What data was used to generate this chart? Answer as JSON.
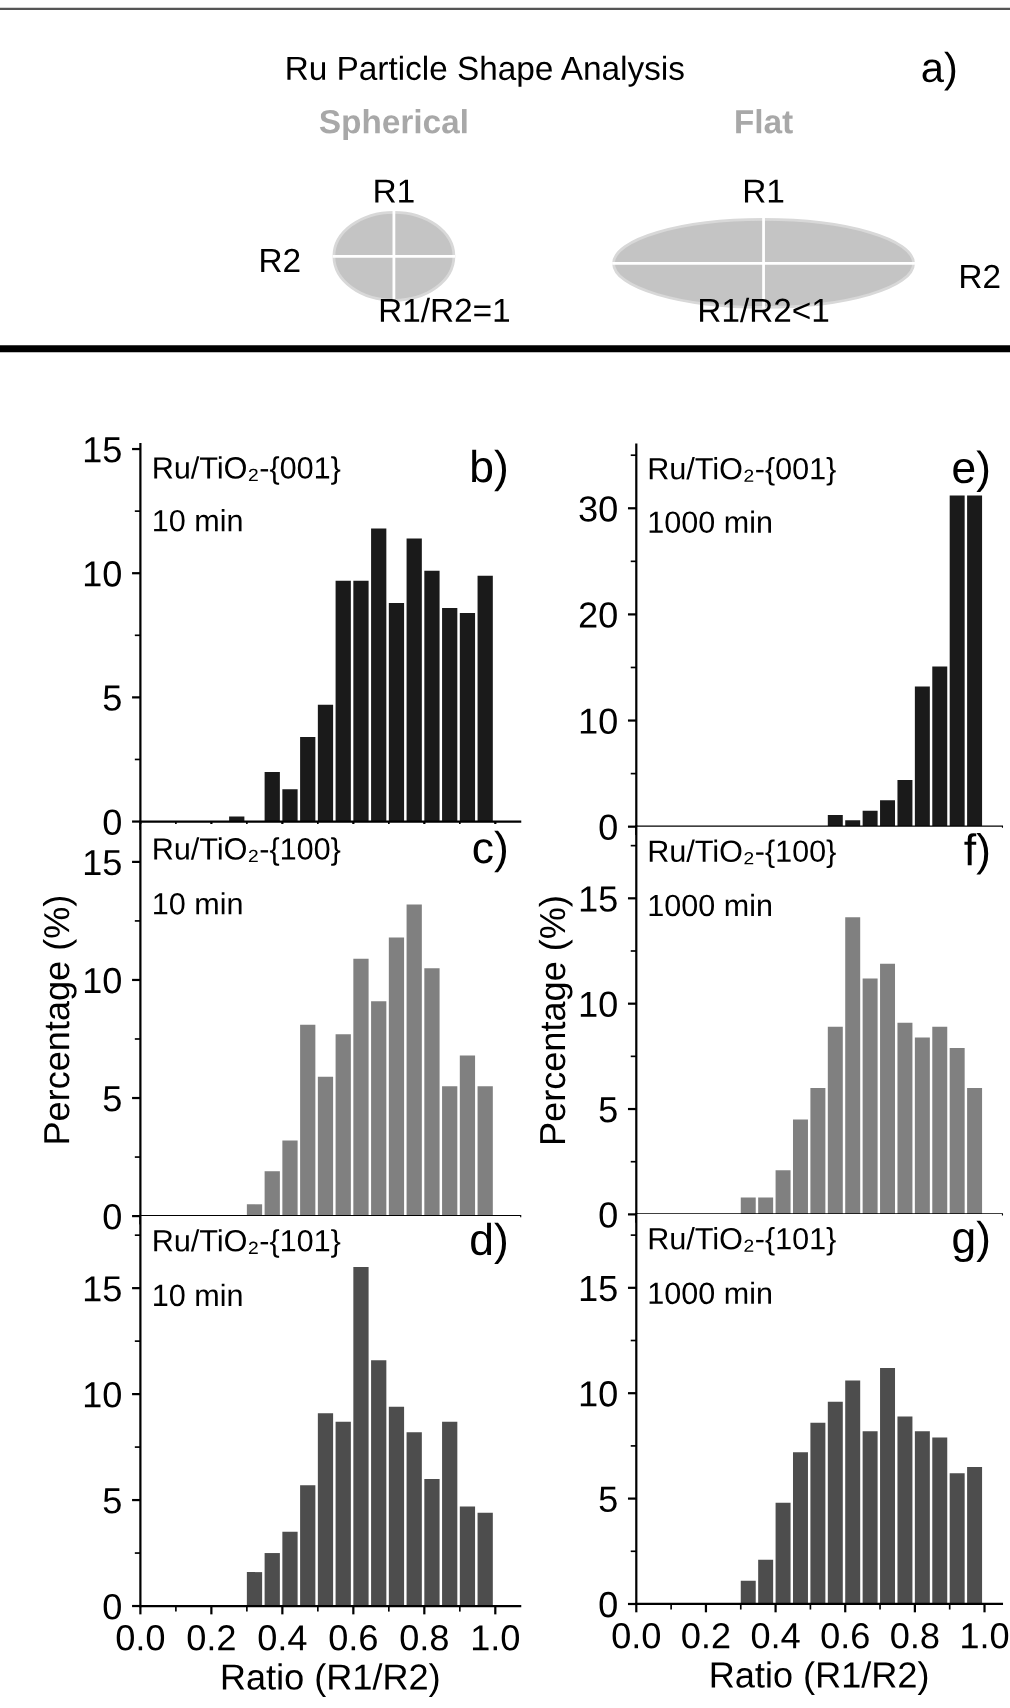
{
  "chart_data": [
    {
      "type": "other",
      "title": "Ru Particle Shape Analysis",
      "annotations": [
        "a)",
        "Spherical",
        "Flat",
        "R1",
        "R2",
        "R1/R2=1",
        "R1",
        "R2",
        "R1/R2<1"
      ]
    },
    {
      "type": "histogram",
      "bins": [
        0.25,
        0.3,
        0.35,
        0.4,
        0.45,
        0.5,
        0.55,
        0.6,
        0.65,
        0.7,
        0.75,
        0.8,
        0.85,
        0.9,
        0.95,
        1.0
      ],
      "values": [
        0.2,
        0,
        2.0,
        1.3,
        3.4,
        4.7,
        9.7,
        9.7,
        11.8,
        8.8,
        11.4,
        10.1,
        8.6,
        8.4,
        9.9
      ],
      "color": "#1a1a1a",
      "xlim": [
        0,
        1.07
      ],
      "ylim": [
        0,
        15.2
      ],
      "xticks": [
        {
          "value": 0,
          "label": null
        },
        {
          "value": 0.2,
          "label": null
        },
        {
          "value": 0.4,
          "label": null
        },
        {
          "value": 0.6,
          "label": null
        },
        {
          "value": 0.8,
          "label": null
        },
        {
          "value": 1,
          "label": null
        }
      ],
      "yticks": [
        0,
        5,
        10,
        15
      ],
      "tick_labels": "y",
      "annotations": [
        "Ru/TiO₂-{001}",
        "10 min",
        "b)"
      ]
    },
    {
      "type": "histogram",
      "bins": [
        0.3,
        0.35,
        0.4,
        0.45,
        0.5,
        0.55,
        0.6,
        0.65,
        0.7,
        0.75,
        0.8,
        0.85,
        0.9,
        0.95,
        1.0
      ],
      "values": [
        0.5,
        1.9,
        3.2,
        8.1,
        5.9,
        7.7,
        10.9,
        9.1,
        11.8,
        13.2,
        10.5,
        5.5,
        6.8,
        5.5
      ],
      "color": "#808080",
      "xlim": [
        0,
        1.07
      ],
      "ylim": [
        0,
        16.6
      ],
      "xticks": [
        {
          "value": 0,
          "label": null
        },
        {
          "value": 0.2,
          "label": null
        },
        {
          "value": 0.4,
          "label": null
        },
        {
          "value": 0.6,
          "label": null
        },
        {
          "value": 0.8,
          "label": null
        },
        {
          "value": 1,
          "label": null
        }
      ],
      "yticks": [
        0,
        5,
        10,
        15
      ],
      "tick_labels": "y",
      "ylabel": "Percentage (%)",
      "annotations": [
        "Ru/TiO₂-{100}",
        "10 min",
        "c)"
      ]
    },
    {
      "type": "histogram",
      "bins": [
        0.3,
        0.35,
        0.4,
        0.45,
        0.5,
        0.55,
        0.6,
        0.65,
        0.7,
        0.75,
        0.8,
        0.85,
        0.9,
        0.95,
        1.0
      ],
      "values": [
        1.6,
        2.5,
        3.5,
        5.7,
        9.1,
        8.7,
        16.0,
        11.6,
        9.4,
        8.2,
        6.0,
        8.7,
        4.7,
        4.4
      ],
      "color": "#4d4d4d",
      "xlim": [
        0,
        1.07
      ],
      "ylim": [
        0,
        18.4
      ],
      "xticks": [
        {
          "value": 0,
          "label": "0.0"
        },
        {
          "value": 0.2,
          "label": "0.2"
        },
        {
          "value": 0.4,
          "label": "0.4"
        },
        {
          "value": 0.6,
          "label": "0.6"
        },
        {
          "value": 0.8,
          "label": "0.8"
        },
        {
          "value": 1,
          "label": "1.0"
        }
      ],
      "yticks": [
        0,
        5,
        10,
        15
      ],
      "xlabel": "Ratio (R1/R2)",
      "annotations": [
        "Ru/TiO₂-{101}",
        "10 min",
        "d)"
      ]
    },
    {
      "type": "histogram",
      "bins": [
        0.55,
        0.6,
        0.65,
        0.7,
        0.75,
        0.8,
        0.85,
        0.9,
        0.95,
        1.0
      ],
      "values": [
        1.1,
        0.6,
        1.5,
        2.5,
        4.4,
        13.2,
        15.1,
        31.2,
        31.2
      ],
      "color": "#1a1a1a",
      "xlim": [
        0,
        1.05
      ],
      "ylim": [
        0,
        36
      ],
      "xticks": [
        {
          "value": 0,
          "label": null
        },
        {
          "value": 0.2,
          "label": null
        },
        {
          "value": 0.4,
          "label": null
        },
        {
          "value": 0.6,
          "label": null
        },
        {
          "value": 0.8,
          "label": null
        },
        {
          "value": 1,
          "label": null
        }
      ],
      "yticks": [
        0,
        10,
        20,
        30
      ],
      "tick_labels": "y",
      "annotations": [
        "Ru/TiO₂-{001}",
        "1000 min",
        "e)"
      ]
    },
    {
      "type": "histogram",
      "bins": [
        0.3,
        0.35,
        0.4,
        0.45,
        0.5,
        0.55,
        0.6,
        0.65,
        0.7,
        0.75,
        0.8,
        0.85,
        0.9,
        0.95,
        1.0
      ],
      "values": [
        0.8,
        0.8,
        2.1,
        4.5,
        6.0,
        8.9,
        14.1,
        11.2,
        11.9,
        9.1,
        8.4,
        8.9,
        7.9,
        6.0
      ],
      "color": "#808080",
      "xlim": [
        0,
        1.05
      ],
      "ylim": [
        0,
        18.4
      ],
      "xticks": [
        {
          "value": 0,
          "label": null
        },
        {
          "value": 0.2,
          "label": null
        },
        {
          "value": 0.4,
          "label": null
        },
        {
          "value": 0.6,
          "label": null
        },
        {
          "value": 0.8,
          "label": null
        },
        {
          "value": 1,
          "label": null
        }
      ],
      "yticks": [
        0,
        5,
        10,
        15
      ],
      "tick_labels": "y",
      "ylabel": "Percentage (%)",
      "annotations": [
        "Ru/TiO₂-{100}",
        "1000 min",
        "f)"
      ]
    },
    {
      "type": "histogram",
      "bins": [
        0.3,
        0.35,
        0.4,
        0.45,
        0.5,
        0.55,
        0.6,
        0.65,
        0.7,
        0.75,
        0.8,
        0.85,
        0.9,
        0.95,
        1.0
      ],
      "values": [
        1.1,
        2.1,
        4.8,
        7.2,
        8.6,
        9.6,
        10.6,
        8.2,
        11.2,
        8.9,
        8.2,
        7.9,
        6.2,
        6.5
      ],
      "color": "#4d4d4d",
      "xlim": [
        0,
        1.05
      ],
      "ylim": [
        0,
        18.5
      ],
      "xticks": [
        {
          "value": 0,
          "label": "0.0"
        },
        {
          "value": 0.2,
          "label": "0.2"
        },
        {
          "value": 0.4,
          "label": "0.4"
        },
        {
          "value": 0.6,
          "label": "0.6"
        },
        {
          "value": 0.8,
          "label": "0.8"
        },
        {
          "value": 1,
          "label": "1.0"
        }
      ],
      "yticks": [
        0,
        5,
        10,
        15
      ],
      "xlabel": "Ratio (R1/R2)",
      "annotations": [
        "Ru/TiO₂-{101}",
        "1000 min",
        "g)"
      ]
    }
  ]
}
